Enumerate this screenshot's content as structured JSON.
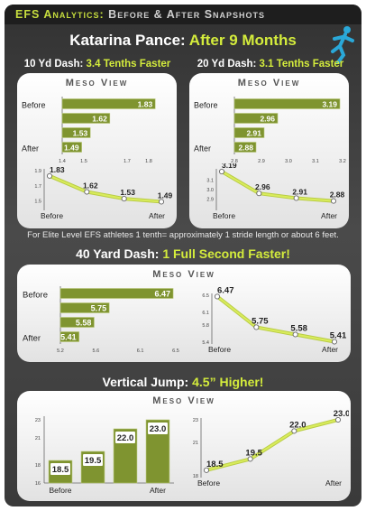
{
  "page": {
    "title_prefix": "EFS Analytics:",
    "title_rest": " Before & After Snapshots",
    "athlete": "Katarina Pance:",
    "period": "After 9 Months",
    "note": "For Elite Level EFS athletes 1 tenth= approximately 1 stride length or about 6 feet.",
    "panel_title": "Meso View",
    "accent": "#c7de3e",
    "bar_color": "#7f9430",
    "line_color": "#d9ec5c"
  },
  "sections": {
    "dash10": {
      "label": "10 Yd Dash:",
      "highlight": "3.4 Tenths Faster"
    },
    "dash20": {
      "label": "20 Yd Dash:",
      "highlight": "3.1 Tenths Faster"
    },
    "dash40": {
      "label": "40 Yard Dash:",
      "highlight": "1 Full Second Faster!"
    },
    "vjump": {
      "label": "Vertical Jump:",
      "highlight": "4.5” Higher!"
    }
  },
  "chart_data": [
    {
      "id": "dash10_bar",
      "type": "bar",
      "orientation": "horizontal",
      "categories": [
        "Before",
        "",
        "",
        "After"
      ],
      "values": [
        1.83,
        1.62,
        1.53,
        1.49
      ],
      "xlim": [
        1.4,
        1.9
      ],
      "ticks": [
        "1.4",
        "1.5",
        "1.7",
        "1.8"
      ]
    },
    {
      "id": "dash10_line",
      "type": "line",
      "categories": [
        "Before",
        "",
        "",
        "After"
      ],
      "values": [
        1.83,
        1.62,
        1.53,
        1.49
      ],
      "ylim": [
        1.4,
        1.9
      ],
      "ticks": [
        "1.9",
        "1.7",
        "1.5"
      ]
    },
    {
      "id": "dash20_bar",
      "type": "bar",
      "orientation": "horizontal",
      "categories": [
        "Before",
        "",
        "",
        "After"
      ],
      "values": [
        3.19,
        2.96,
        2.91,
        2.88
      ],
      "xlim": [
        2.8,
        3.2
      ],
      "ticks": [
        "2.8",
        "2.9",
        "3.0",
        "3.1",
        "3.2"
      ]
    },
    {
      "id": "dash20_line",
      "type": "line",
      "categories": [
        "Before",
        "",
        "",
        "After"
      ],
      "values": [
        3.19,
        2.96,
        2.91,
        2.88
      ],
      "ylim": [
        2.8,
        3.2
      ],
      "ticks": [
        "3.1",
        "3.0",
        "2.9"
      ]
    },
    {
      "id": "dash40_bar",
      "type": "bar",
      "orientation": "horizontal",
      "categories": [
        "Before",
        "",
        "",
        "After"
      ],
      "values": [
        6.47,
        5.75,
        5.58,
        5.41
      ],
      "xlim": [
        5.2,
        6.5
      ],
      "ticks": [
        "5.2",
        "5.6",
        "6.1",
        "6.5"
      ]
    },
    {
      "id": "dash40_line",
      "type": "line",
      "categories": [
        "Before",
        "",
        "",
        "After"
      ],
      "values": [
        6.47,
        5.75,
        5.58,
        5.41
      ],
      "ylim": [
        5.4,
        6.5
      ],
      "ticks": [
        "6.5",
        "6.1",
        "5.8",
        "5.4"
      ]
    },
    {
      "id": "vjump_bar",
      "type": "bar",
      "orientation": "vertical",
      "categories": [
        "Before",
        "",
        "",
        "After"
      ],
      "values": [
        18.5,
        19.5,
        22.0,
        23.0
      ],
      "ylim": [
        16,
        23
      ],
      "ticks": [
        "23",
        "21",
        "18",
        "16"
      ]
    },
    {
      "id": "vjump_line",
      "type": "line",
      "categories": [
        "Before",
        "",
        "",
        "After"
      ],
      "values": [
        18.5,
        19.5,
        22.0,
        23.0
      ],
      "ylim": [
        18,
        23
      ],
      "ticks": [
        "23",
        "21",
        "18"
      ]
    }
  ]
}
